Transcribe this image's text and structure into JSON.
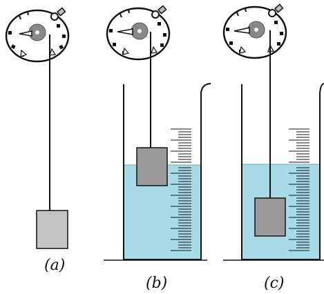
{
  "labels": {
    "a": "(a)",
    "b": "(b)",
    "c": "(c)"
  },
  "colors": {
    "water": "#a8dbe8",
    "block_a": "#c3c3c3",
    "block_bc": "#9a9a9a",
    "line": "#111111"
  },
  "icons": [
    "scale-dial-icon",
    "hook-icon",
    "pulley-icon"
  ]
}
